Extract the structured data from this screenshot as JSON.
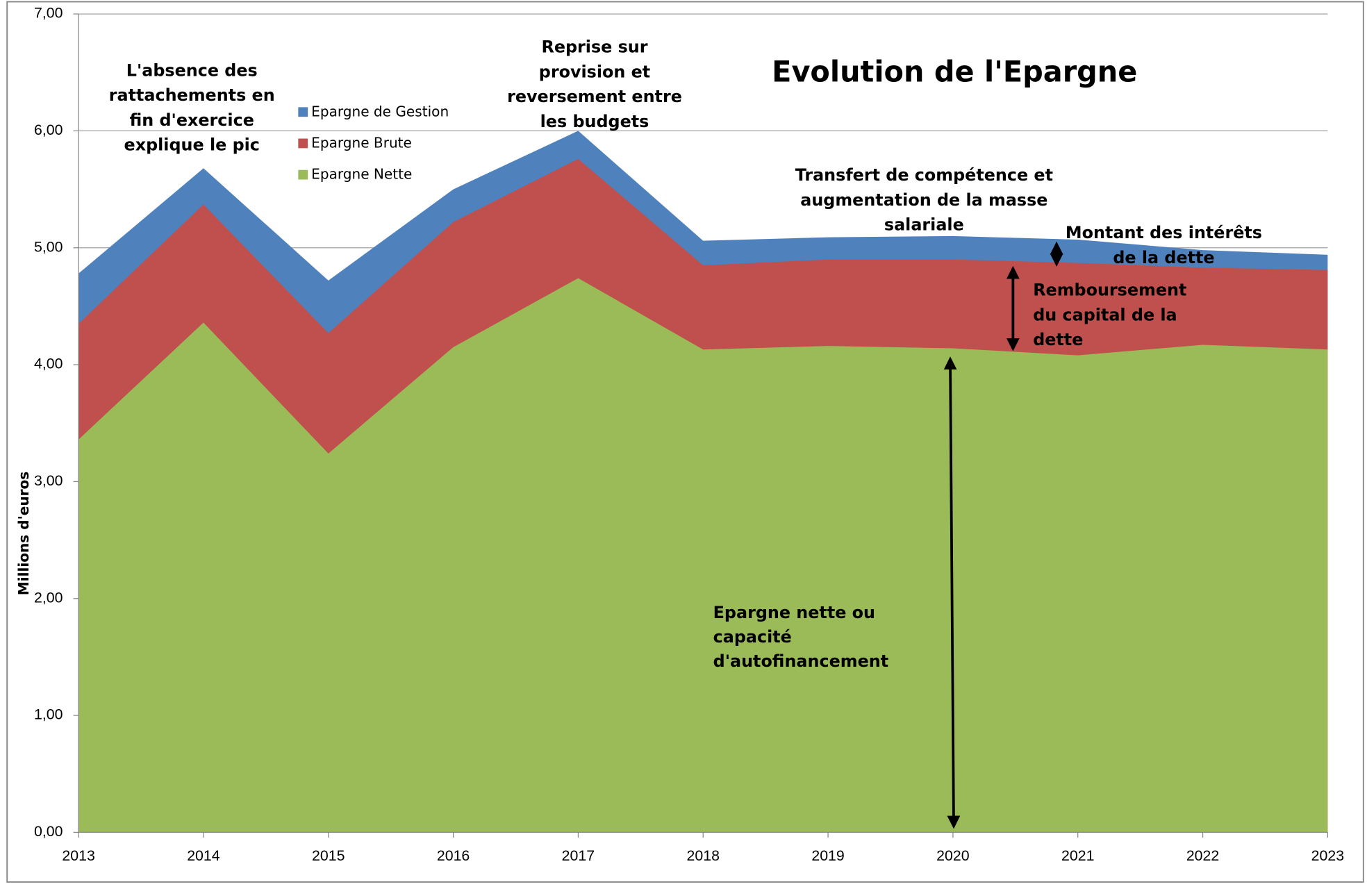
{
  "chart_data": {
    "type": "area",
    "title": "Evolution de l'Epargne",
    "y_label": "Millions d'euros",
    "categories": [
      "2013",
      "2014",
      "2015",
      "2016",
      "2017",
      "2018",
      "2019",
      "2020",
      "2021",
      "2022",
      "2023"
    ],
    "series": [
      {
        "name": "Epargne de Gestion",
        "color": "#4f81bd",
        "values": [
          4.78,
          5.68,
          4.72,
          5.5,
          6.0,
          5.06,
          5.09,
          5.1,
          5.07,
          4.98,
          4.94
        ]
      },
      {
        "name": "Epargne Brute",
        "color": "#c0504d",
        "values": [
          4.35,
          5.37,
          4.27,
          5.22,
          5.76,
          4.85,
          4.9,
          4.9,
          4.87,
          4.83,
          4.81
        ]
      },
      {
        "name": "Epargne Nette",
        "color": "#9bbb59",
        "values": [
          3.36,
          4.36,
          3.24,
          4.15,
          4.74,
          4.13,
          4.16,
          4.14,
          4.08,
          4.17,
          4.13
        ]
      }
    ],
    "ylim": [
      0,
      7
    ],
    "yticks": [
      {
        "value": 0,
        "label": "0,00"
      },
      {
        "value": 1,
        "label": "1,00"
      },
      {
        "value": 2,
        "label": "2,00"
      },
      {
        "value": 3,
        "label": "3,00"
      },
      {
        "value": 4,
        "label": "4,00"
      },
      {
        "value": 5,
        "label": "5,00"
      },
      {
        "value": 6,
        "label": "6,00"
      },
      {
        "value": 7,
        "label": "7,00"
      }
    ],
    "grid": true,
    "legend": "top-left",
    "annotations": [
      [
        "L'absence des",
        "rattachements en",
        "fin d'exercice",
        "explique le pic"
      ],
      [
        "Reprise sur",
        "provision et",
        "reversement entre",
        "les budgets"
      ],
      [
        "Transfert de compétence et",
        "augmentation de la masse",
        "salariale"
      ],
      [
        "Montant des intérêts",
        "de la dette"
      ],
      [
        "Remboursement",
        "du capital de la",
        "dette"
      ],
      [
        "Epargne nette ou",
        "capacité",
        "d'autofinancement"
      ]
    ]
  }
}
